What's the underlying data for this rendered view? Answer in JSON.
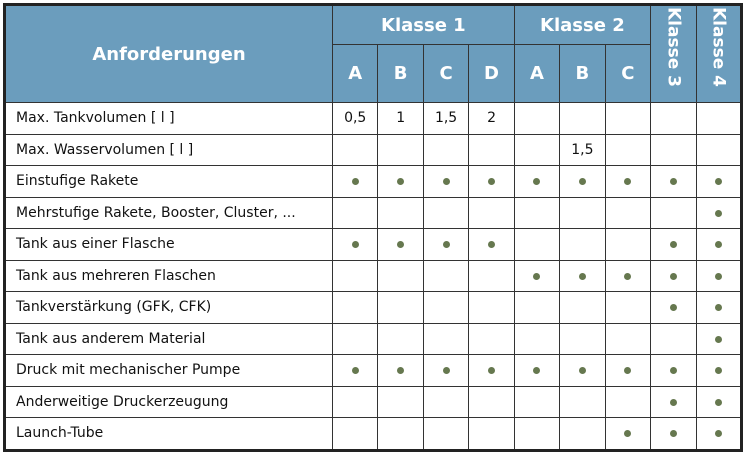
{
  "header": {
    "title": "Anforderungen",
    "groups": [
      "Klasse 1",
      "Klasse 2",
      "Klasse 3",
      "Klasse 4"
    ],
    "klasse1_sub": [
      "A",
      "B",
      "C",
      "D"
    ],
    "klasse2_sub": [
      "A",
      "B",
      "C"
    ]
  },
  "colors": {
    "header": "#6b9dbd",
    "dot": "#66784f"
  },
  "rows": [
    {
      "label": "Max. Tankvolumen [ l ]",
      "cells": [
        "0,5",
        "1",
        "1,5",
        "2",
        "",
        "",
        "",
        "",
        ""
      ]
    },
    {
      "label": "Max. Wasservolumen [ l ]",
      "cells": [
        "",
        "",
        "",
        "",
        "",
        "1,5",
        "",
        "",
        ""
      ]
    },
    {
      "label": "Einstufige Rakete",
      "cells": [
        true,
        true,
        true,
        true,
        true,
        true,
        true,
        true,
        true
      ]
    },
    {
      "label": "Mehrstufige Rakete, Booster, Cluster, ...",
      "cells": [
        false,
        false,
        false,
        false,
        false,
        false,
        false,
        false,
        true
      ]
    },
    {
      "label": "Tank aus einer Flasche",
      "cells": [
        true,
        true,
        true,
        true,
        false,
        false,
        false,
        true,
        true
      ]
    },
    {
      "label": "Tank aus mehreren Flaschen",
      "cells": [
        false,
        false,
        false,
        false,
        true,
        true,
        true,
        true,
        true
      ]
    },
    {
      "label": "Tankverstärkung (GFK, CFK)",
      "cells": [
        false,
        false,
        false,
        false,
        false,
        false,
        false,
        true,
        true
      ]
    },
    {
      "label": "Tank aus anderem Material",
      "cells": [
        false,
        false,
        false,
        false,
        false,
        false,
        false,
        false,
        true
      ]
    },
    {
      "label": "Druck mit mechanischer Pumpe",
      "cells": [
        true,
        true,
        true,
        true,
        true,
        true,
        true,
        true,
        true
      ]
    },
    {
      "label": "Anderweitige Druckerzeugung",
      "cells": [
        false,
        false,
        false,
        false,
        false,
        false,
        false,
        true,
        true
      ]
    },
    {
      "label": "Launch-Tube",
      "cells": [
        false,
        false,
        false,
        false,
        false,
        false,
        true,
        true,
        true
      ]
    }
  ]
}
